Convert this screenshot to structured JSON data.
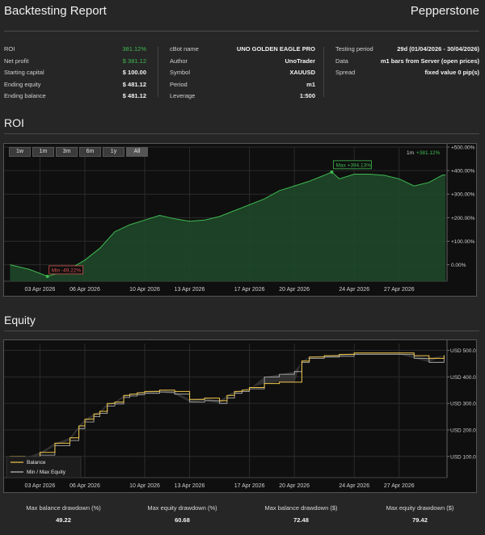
{
  "header": {
    "title": "Backtesting Report",
    "brand": "Pepperstone"
  },
  "summary": {
    "col1": [
      {
        "label": "ROI",
        "value": "381.12%",
        "accent": "green"
      },
      {
        "label": "Net profit",
        "value": "$ 381.12",
        "accent": "green"
      },
      {
        "label": "Starting capital",
        "value": "$ 100.00"
      },
      {
        "label": "Ending equity",
        "value": "$ 481.12"
      },
      {
        "label": "Ending balance",
        "value": "$ 481.12"
      }
    ],
    "col2": [
      {
        "label": "cBot name",
        "value": "UNO GOLDEN EAGLE PRO"
      },
      {
        "label": "Author",
        "value": "UnoTrader"
      },
      {
        "label": "Symbol",
        "value": "XAUUSD"
      },
      {
        "label": "Period",
        "value": "m1"
      },
      {
        "label": "Leverage",
        "value": "1:500"
      }
    ],
    "col3": [
      {
        "label": "Testing period",
        "value": "29d (01/04/2026 - 30/04/2026)"
      },
      {
        "label": "Data",
        "value": "m1 bars from Server (open prices)"
      },
      {
        "label": "Spread",
        "value": "fixed value 0 pip(s)"
      }
    ]
  },
  "roi": {
    "section_title": "ROI",
    "range_buttons": [
      "1w",
      "1m",
      "3m",
      "6m",
      "1y",
      "All"
    ],
    "active_range": "All",
    "legend": {
      "prefix": "1m",
      "value": "+381.12%"
    },
    "max_label": "Max +394.13%",
    "min_label": "Min -49.22%",
    "colors": {
      "line": "#3fb950",
      "fill": "#1e4a2a",
      "max_border": "#3fb950",
      "min_border": "#d9534f"
    }
  },
  "equity": {
    "section_title": "Equity",
    "legend": {
      "balance": "Balance",
      "equity": "Min / Max Equity"
    },
    "colors": {
      "balance": "#f2c94c",
      "equity": "#bfbfbf"
    }
  },
  "chart_data": [
    {
      "type": "area",
      "title": "ROI",
      "x_ticks": [
        "03 Apr 2026",
        "06 Apr 2026",
        "10 Apr 2026",
        "13 Apr 2026",
        "17 Apr 2026",
        "20 Apr 2026",
        "24 Apr 2026",
        "27 Apr 2026"
      ],
      "y_ticks": [
        "+500.00%",
        "+400.00%",
        "+300.00%",
        "+200.00%",
        "+100.00%",
        "0.00%"
      ],
      "ylim": [
        -70,
        500
      ],
      "x_days": [
        1,
        2.3,
        3.5,
        4.8,
        6,
        7,
        8,
        9,
        10,
        11,
        12,
        13,
        14,
        15,
        16,
        17,
        18,
        19,
        20,
        21,
        22,
        22.5,
        23,
        24,
        25,
        26,
        27,
        28,
        29,
        29.9,
        30.1
      ],
      "values": [
        0,
        -20,
        -49.22,
        -25,
        20,
        70,
        140,
        170,
        190,
        210,
        195,
        185,
        190,
        205,
        230,
        255,
        280,
        315,
        335,
        355,
        380,
        394.13,
        365,
        385,
        385,
        380,
        365,
        335,
        350,
        381.12,
        381.12
      ],
      "annotations": [
        {
          "label": "Max +394.13%",
          "x_day": 22.5,
          "y": 394.13
        },
        {
          "label": "Min -49.22%",
          "x_day": 3.5,
          "y": -49.22
        }
      ]
    },
    {
      "type": "line",
      "title": "Equity",
      "x_ticks": [
        "03 Apr 2026",
        "06 Apr 2026",
        "10 Apr 2026",
        "13 Apr 2026",
        "17 Apr 2026",
        "20 Apr 2026",
        "24 Apr 2026",
        "27 Apr 2026"
      ],
      "y_ticks": [
        "USD 500.00",
        "USD 400.00",
        "USD 300.00",
        "USD 200.00",
        "USD 100.00"
      ],
      "ylim": [
        20,
        520
      ],
      "series": [
        {
          "name": "Balance",
          "x_days": [
            1,
            2,
            3,
            4,
            5,
            5.6,
            6,
            6.6,
            7,
            7.5,
            8,
            8.6,
            9,
            9.5,
            10,
            11,
            12,
            13,
            14,
            15,
            15.5,
            16,
            16.5,
            17,
            18,
            19,
            20,
            20.5,
            21,
            22,
            23,
            24,
            25,
            26,
            27,
            28,
            29,
            30
          ],
          "values": [
            100,
            95,
            115,
            150,
            170,
            215,
            240,
            260,
            270,
            300,
            305,
            330,
            335,
            340,
            345,
            350,
            345,
            315,
            320,
            310,
            330,
            345,
            350,
            360,
            375,
            380,
            380,
            460,
            475,
            480,
            485,
            490,
            490,
            490,
            490,
            480,
            470,
            481.12
          ]
        },
        {
          "name": "Min / Max Equity",
          "x_days": [
            1,
            2,
            3,
            4,
            5,
            5.6,
            6,
            6.6,
            7,
            7.5,
            8,
            8.6,
            9,
            9.5,
            10,
            11,
            12,
            13,
            14,
            15,
            15.5,
            16,
            16.5,
            17,
            18,
            19,
            20,
            20.5,
            21,
            22,
            23,
            24,
            25,
            26,
            27,
            28,
            29,
            30
          ],
          "values": [
            90,
            85,
            105,
            140,
            160,
            205,
            230,
            250,
            262,
            290,
            298,
            322,
            328,
            333,
            338,
            343,
            335,
            305,
            310,
            300,
            320,
            338,
            345,
            355,
            400,
            410,
            420,
            455,
            470,
            475,
            478,
            485,
            485,
            485,
            485,
            470,
            455,
            481.12
          ]
        }
      ]
    }
  ],
  "stats": [
    {
      "label": "Max balance drawdown (%)",
      "value": "49.22"
    },
    {
      "label": "Max equity drawdown (%)",
      "value": "60.68"
    },
    {
      "label": "Max balance drawdown ($)",
      "value": "72.48"
    },
    {
      "label": "Max equity drawdown ($)",
      "value": "79.42"
    }
  ]
}
